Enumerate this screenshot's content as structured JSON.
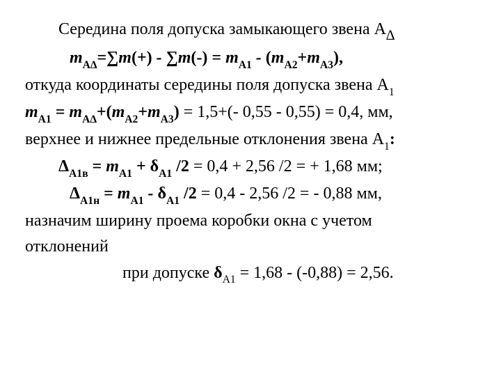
{
  "doc": {
    "font_family": "Times New Roman",
    "background_color": "#ffffff",
    "text_color": "#000000",
    "base_fontsize_pt": 18
  },
  "l1": {
    "text_a": "Середина поля допуска замыкающего звена  А",
    "sub": "∆"
  },
  "l2": {
    "m": "m",
    "sub1": "А∆",
    "eq": "=∑",
    "m2": "m",
    "plus": "(+) ",
    "dash": "-",
    "sum2": " ∑",
    "m3": "m",
    "neg": "(-) = ",
    "m4": "m",
    "subA1": "А1",
    "dash2": " - ",
    "paren": "(",
    "m5": "m",
    "subA2": "А2",
    "plus2": "+",
    "m6": "m",
    "subA3": "А3",
    "close": "),"
  },
  "l3": {
    "text_a": "откуда координаты середины поля допуска звена А",
    "sub": "1"
  },
  "l4": {
    "m": "m",
    "subA1": "А1",
    "eq": " = ",
    "m2": "m",
    "subAD": "А∆",
    "plus": "+(",
    "m3": "m",
    "subA2": "А2",
    "plus2": "+",
    "m4": "m",
    "subA3": "А3",
    "close": ")",
    "rhs": " = 1,5+(- 0,55 - 0,55) = 0,4, мм,"
  },
  "l5": {
    "text_a": "верхнее и нижнее предельные отклонения звена А",
    "sub": "1",
    "colon": ":"
  },
  "l6": {
    "D": "Δ",
    "sub1": "А1в",
    "eq": " = ",
    "m": "m",
    "subA1": "А1",
    "plus": " + ",
    "d": "δ",
    "subd": "А1",
    "div": " /2 ",
    "rhs": " = 0,4 + 2,56 /2 = + 1,68 мм;"
  },
  "l7": {
    "D": "Δ",
    "sub1": "А1н",
    "eq": " = ",
    "m": "m",
    "subA1": "А1",
    "minus": " - ",
    "d": "δ",
    "subd": "А1",
    "div": " /2 ",
    "rhs": " = 0,4 - 2,56 /2 = - 0,88 мм,"
  },
  "l8": {
    "text": "назначим ширину проема коробки окна с учетом"
  },
  "l9": {
    "text": "отклонений"
  },
  "l10": {
    "pre": "при допуске  ",
    "d": "δ",
    "sub": "А1",
    "rhs": " = 1,68 - (-0,88) = 2,56."
  }
}
